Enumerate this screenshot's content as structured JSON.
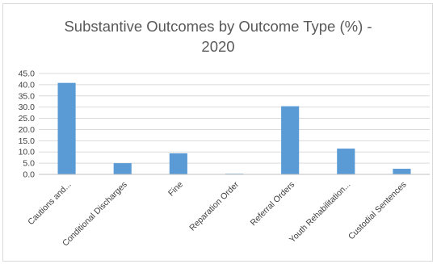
{
  "chart_data": {
    "type": "bar",
    "title_line1": "Substantive Outcomes by Outcome Type (%) -",
    "title_line2": "2020",
    "categories": [
      "Cautions and...",
      "Conditional Discharges",
      "Fine",
      "Reparation Order",
      "Referral Orders",
      "Youth Rehabilitation...",
      "Custodial Sentences"
    ],
    "values": [
      40.8,
      5.0,
      9.4,
      0.3,
      30.4,
      11.5,
      2.5
    ],
    "ylim": [
      0,
      45
    ],
    "yticks": [
      "0.0",
      "5.0",
      "10.0",
      "15.0",
      "20.0",
      "25.0",
      "30.0",
      "35.0",
      "40.0",
      "45.0"
    ],
    "bar_color": "#5b9bd5",
    "grid": true,
    "legend": "none"
  }
}
